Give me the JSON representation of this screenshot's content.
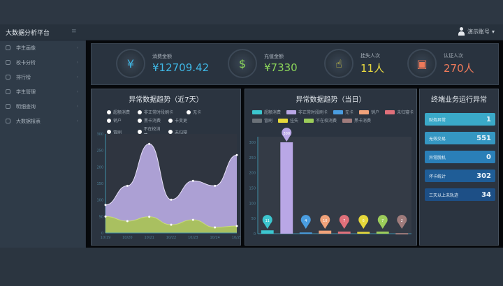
{
  "header": {
    "title": "大数据分析平台",
    "menu_icon": "hamburger-icon",
    "user": "演示账号",
    "user_icon": "user-icon"
  },
  "sidebar": {
    "items": [
      {
        "label": "学生画像",
        "icon": "user-icon"
      },
      {
        "label": "校卡分析",
        "icon": "card-icon"
      },
      {
        "label": "排行榜",
        "icon": "trophy-icon"
      },
      {
        "label": "学生管理",
        "icon": "users-icon"
      },
      {
        "label": "明细查询",
        "icon": "search-icon"
      },
      {
        "label": "大数据报表",
        "icon": "report-icon"
      }
    ]
  },
  "kpis": [
    {
      "label": "消费金额",
      "value": "¥12709.42",
      "color": "#3fb8e6",
      "icon": "coins-icon",
      "glyph": "¥"
    },
    {
      "label": "充值金额",
      "value": "¥7330",
      "color": "#8cd65a",
      "icon": "money-bag-icon",
      "glyph": "$"
    },
    {
      "label": "挂失人次",
      "value": "11人",
      "color": "#e6d840",
      "icon": "hand-touch-icon",
      "glyph": "☝"
    },
    {
      "label": "认证人次",
      "value": "270人",
      "color": "#ef7a5a",
      "icon": "id-card-icon",
      "glyph": "▣"
    }
  ],
  "trend7": {
    "title": "异常数据趋势（近7天）",
    "legend": [
      "超额消费",
      "非正常时段刷卡",
      "无卡",
      "销户",
      "黑卡消费",
      "卡变更",
      "冒刷",
      "不在校消费",
      "未归寝"
    ]
  },
  "trendToday": {
    "title": "异常数据趋势（当日）",
    "legend": [
      {
        "label": "超额消费",
        "color": "#3cc6cf"
      },
      {
        "label": "非正常时段刷卡",
        "color": "#b9a7e6"
      },
      {
        "label": "无卡",
        "color": "#4a9de0"
      },
      {
        "label": "销户",
        "color": "#f0a27a"
      },
      {
        "label": "未归寝卡",
        "color": "#e0707a"
      },
      {
        "label": "冒刷",
        "color": "#6b7178"
      },
      {
        "label": "挂失",
        "color": "#e6d83a"
      },
      {
        "label": "不在校消费",
        "color": "#9ccc5a"
      },
      {
        "label": "黑卡消费",
        "color": "#a07c7c"
      }
    ]
  },
  "terminal": {
    "title": "终端业务运行异常",
    "rows": [
      {
        "label": "财务异常",
        "value": "1",
        "color": "#3aa9c8"
      },
      {
        "label": "无效交易",
        "value": "551",
        "color": "#3597c2"
      },
      {
        "label": "异常脱机",
        "value": "0",
        "color": "#2a7fb8"
      },
      {
        "label": "坏卡统计",
        "value": "302",
        "color": "#1f5d97"
      },
      {
        "label": "三天以上未轨迹",
        "value": "34",
        "color": "#1d4f86"
      }
    ]
  },
  "chart_data": [
    {
      "type": "area",
      "title": "异常数据趋势（近7天）",
      "x": [
        "10/19",
        "10/20",
        "10/21",
        "10/22",
        "10/23",
        "10/24",
        "10/25"
      ],
      "ylim": [
        0,
        300
      ],
      "yticks": [
        0,
        50,
        100,
        150,
        200,
        250,
        300
      ],
      "series": [
        {
          "name": "非正常时段刷卡",
          "color": "#b3a6dc",
          "values": [
            85,
            143,
            270,
            101,
            158,
            143,
            236
          ]
        },
        {
          "name": "不在校消费",
          "color": "#a9c25a",
          "values": [
            50,
            36,
            49,
            25,
            40,
            17,
            21
          ]
        }
      ]
    },
    {
      "type": "bar",
      "title": "异常数据趋势（当日）",
      "categories": [
        "超额消费",
        "非正常时段刷卡",
        "无卡",
        "销户",
        "未归寝卡",
        "挂失",
        "不在校消费",
        "黑卡消费"
      ],
      "values": [
        11,
        300,
        4,
        10,
        7,
        6,
        7,
        2
      ],
      "colors": [
        "#3cc6cf",
        "#b9a7e6",
        "#4a9de0",
        "#f0a27a",
        "#e0707a",
        "#e6d83a",
        "#9ccc5a",
        "#a07c7c"
      ],
      "ylim": [
        0,
        300
      ],
      "yticks": [
        0,
        50,
        100,
        150,
        200,
        250,
        300
      ]
    }
  ]
}
